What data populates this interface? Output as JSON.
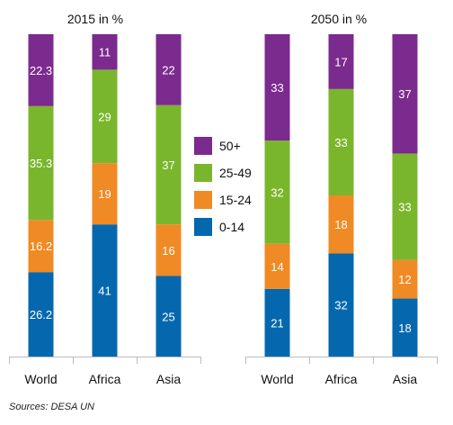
{
  "chart_data": [
    {
      "type": "bar",
      "stacked": true,
      "title": "2015 in %",
      "categories": [
        "World",
        "Africa",
        "Asia"
      ],
      "series": [
        {
          "name": "0-14",
          "values": [
            26.2,
            41,
            25
          ]
        },
        {
          "name": "15-24",
          "values": [
            16.2,
            19,
            16
          ]
        },
        {
          "name": "25-49",
          "values": [
            35.3,
            29,
            37
          ]
        },
        {
          "name": "50+",
          "values": [
            22.3,
            11,
            22
          ]
        }
      ],
      "value_labels": [
        [
          "26.2",
          "41",
          "25"
        ],
        [
          "16.2",
          "19",
          "16"
        ],
        [
          "35.3",
          "29",
          "37"
        ],
        [
          "22.3",
          "11",
          "22"
        ]
      ],
      "ylim": [
        0,
        100
      ]
    },
    {
      "type": "bar",
      "stacked": true,
      "title": "2050 in %",
      "categories": [
        "World",
        "Africa",
        "Asia"
      ],
      "series": [
        {
          "name": "0-14",
          "values": [
            21,
            32,
            18
          ]
        },
        {
          "name": "15-24",
          "values": [
            14,
            18,
            12
          ]
        },
        {
          "name": "25-49",
          "values": [
            32,
            33,
            33
          ]
        },
        {
          "name": "50+",
          "values": [
            33,
            17,
            37
          ]
        }
      ],
      "value_labels": [
        [
          "21",
          "32",
          "18"
        ],
        [
          "14",
          "18",
          "12"
        ],
        [
          "32",
          "33",
          "33"
        ],
        [
          "33",
          "17",
          "37"
        ]
      ],
      "ylim": [
        0,
        100
      ]
    }
  ],
  "legend": [
    {
      "label": "50+",
      "color": "#7b2a8e"
    },
    {
      "label": "25-49",
      "color": "#7ab62c"
    },
    {
      "label": "15-24",
      "color": "#f08a24"
    },
    {
      "label": "0-14",
      "color": "#0568ae"
    }
  ],
  "colors": {
    "0-14": "#0568ae",
    "15-24": "#f08a24",
    "25-49": "#7ab62c",
    "50+": "#7b2a8e"
  },
  "source": "Sources: DESA UN"
}
